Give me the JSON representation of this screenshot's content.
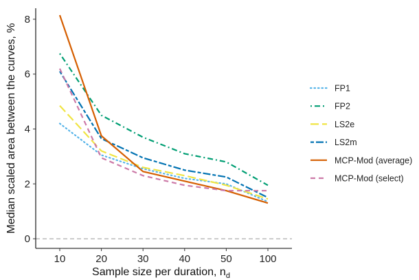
{
  "chart_data": {
    "type": "line",
    "xlabel": "Sample size per duration, n",
    "xlabel_subscript": "d",
    "ylabel": "Median scaled area between the curves, %",
    "categories": [
      "10",
      "20",
      "30",
      "40",
      "50",
      "100"
    ],
    "yticks": [
      "0",
      "2",
      "4",
      "6",
      "8"
    ],
    "ylim": [
      -0.35,
      8.4
    ],
    "reference_line": {
      "y": 0,
      "style": "dashed",
      "color": "#b3b3b3"
    },
    "grid": false,
    "legend_position": "right",
    "series": [
      {
        "name": "FP1",
        "color": "#56B4E9",
        "dash": "dotted",
        "values": [
          4.2,
          3.05,
          2.55,
          2.2,
          2.0,
          1.35
        ]
      },
      {
        "name": "FP2",
        "color": "#009E73",
        "dash": "dotdash",
        "values": [
          6.75,
          4.5,
          3.7,
          3.1,
          2.8,
          1.95
        ]
      },
      {
        "name": "LS2e",
        "color": "#F0E442",
        "dash": "longdash",
        "values": [
          4.85,
          3.2,
          2.6,
          2.3,
          1.95,
          1.45
        ]
      },
      {
        "name": "LS2m",
        "color": "#0072B2",
        "dash": "twodash",
        "values": [
          6.1,
          3.65,
          2.95,
          2.5,
          2.25,
          1.5
        ]
      },
      {
        "name": "MCP-Mod (average)",
        "color": "#D55E00",
        "dash": "solid",
        "values": [
          8.15,
          3.75,
          2.45,
          2.1,
          1.75,
          1.3
        ]
      },
      {
        "name": "MCP-Mod (select)",
        "color": "#CC79A7",
        "dash": "dashed",
        "values": [
          6.2,
          2.95,
          2.3,
          1.95,
          1.75,
          1.75
        ]
      }
    ]
  }
}
